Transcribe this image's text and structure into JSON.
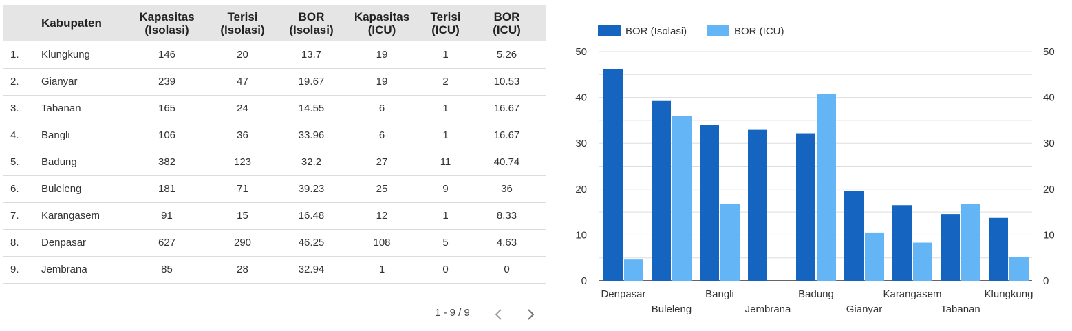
{
  "table": {
    "headers": [
      {
        "line1": "",
        "line2": ""
      },
      {
        "line1": "Kabupaten",
        "line2": ""
      },
      {
        "line1": "Kapasitas",
        "line2": "(Isolasi)"
      },
      {
        "line1": "Terisi",
        "line2": "(Isolasi)"
      },
      {
        "line1": "BOR",
        "line2": "(Isolasi)"
      },
      {
        "line1": "Kapasitas",
        "line2": "(ICU)"
      },
      {
        "line1": "Terisi",
        "line2": "(ICU)"
      },
      {
        "line1": "BOR",
        "line2": "(ICU)"
      }
    ],
    "rows": [
      [
        "1.",
        "Klungkung",
        "146",
        "20",
        "13.7",
        "19",
        "1",
        "5.26"
      ],
      [
        "2.",
        "Gianyar",
        "239",
        "47",
        "19.67",
        "19",
        "2",
        "10.53"
      ],
      [
        "3.",
        "Tabanan",
        "165",
        "24",
        "14.55",
        "6",
        "1",
        "16.67"
      ],
      [
        "4.",
        "Bangli",
        "106",
        "36",
        "33.96",
        "6",
        "1",
        "16.67"
      ],
      [
        "5.",
        "Badung",
        "382",
        "123",
        "32.2",
        "27",
        "11",
        "40.74"
      ],
      [
        "6.",
        "Buleleng",
        "181",
        "71",
        "39.23",
        "25",
        "9",
        "36"
      ],
      [
        "7.",
        "Karangasem",
        "91",
        "15",
        "16.48",
        "12",
        "1",
        "8.33"
      ],
      [
        "8.",
        "Denpasar",
        "627",
        "290",
        "46.25",
        "108",
        "5",
        "4.63"
      ],
      [
        "9.",
        "Jembrana",
        "85",
        "28",
        "32.94",
        "1",
        "0",
        "0"
      ]
    ],
    "pagination": "1 - 9 / 9",
    "prev_icon": "chevron-left-icon",
    "next_icon": "chevron-right-icon"
  },
  "chart_data": {
    "type": "bar",
    "categories": [
      "Denpasar",
      "Buleleng",
      "Bangli",
      "Jembrana",
      "Badung",
      "Gianyar",
      "Karangasem",
      "Tabanan",
      "Klungkung"
    ],
    "series": [
      {
        "name": "BOR (Isolasi)",
        "color": "#1565c0",
        "values": [
          46.25,
          39.23,
          33.96,
          32.94,
          32.2,
          19.67,
          16.48,
          14.55,
          13.7
        ]
      },
      {
        "name": "BOR (ICU)",
        "color": "#64b5f6",
        "values": [
          4.63,
          36,
          16.67,
          0,
          40.74,
          10.53,
          8.33,
          16.67,
          5.26
        ]
      }
    ],
    "ylim": [
      0,
      50
    ],
    "yticks": [
      0,
      10,
      20,
      30,
      40,
      50
    ],
    "y_axis_both_sides": true,
    "legend": "top-left",
    "grid": true
  }
}
